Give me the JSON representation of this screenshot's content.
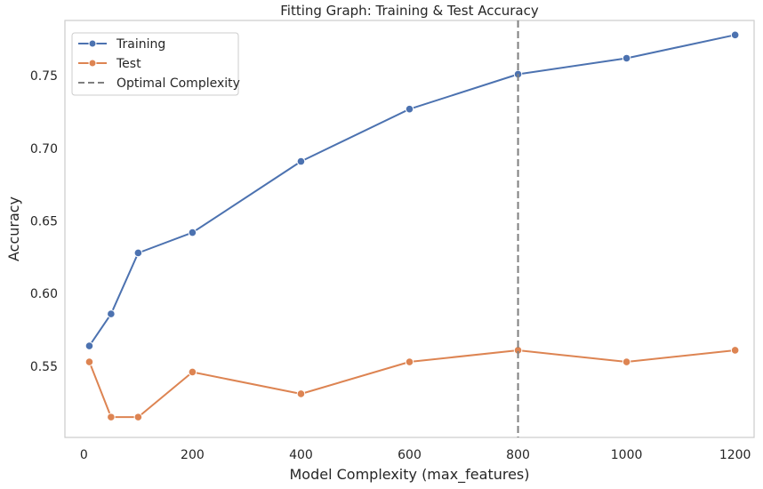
{
  "chart_data": {
    "type": "line",
    "title": "Fitting Graph: Training & Test Accuracy",
    "xlabel": "Model Complexity (max_features)",
    "ylabel": "Accuracy",
    "x": [
      10,
      50,
      100,
      200,
      400,
      600,
      800,
      1000,
      1200
    ],
    "xlim": [
      -35,
      1235
    ],
    "ylim": [
      0.501,
      0.788
    ],
    "xticks": [
      0,
      200,
      400,
      600,
      800,
      1000,
      1200
    ],
    "yticks": [
      0.55,
      0.6,
      0.65,
      0.7,
      0.75
    ],
    "ytick_labels": [
      "0.55",
      "0.60",
      "0.65",
      "0.70",
      "0.75"
    ],
    "grid": false,
    "legend_position": "upper left",
    "series": [
      {
        "name": "Training",
        "color": "#4c72b0",
        "values": [
          0.564,
          0.586,
          0.628,
          0.642,
          0.691,
          0.727,
          0.751,
          0.762,
          0.778
        ]
      },
      {
        "name": "Test",
        "color": "#dd8452",
        "values": [
          0.553,
          0.515,
          0.515,
          0.546,
          0.531,
          0.553,
          0.561,
          0.553,
          0.561
        ]
      }
    ],
    "vline": {
      "name": "Optimal Complexity",
      "x": 800,
      "color": "#7f7f7f",
      "style": "dashed"
    }
  }
}
